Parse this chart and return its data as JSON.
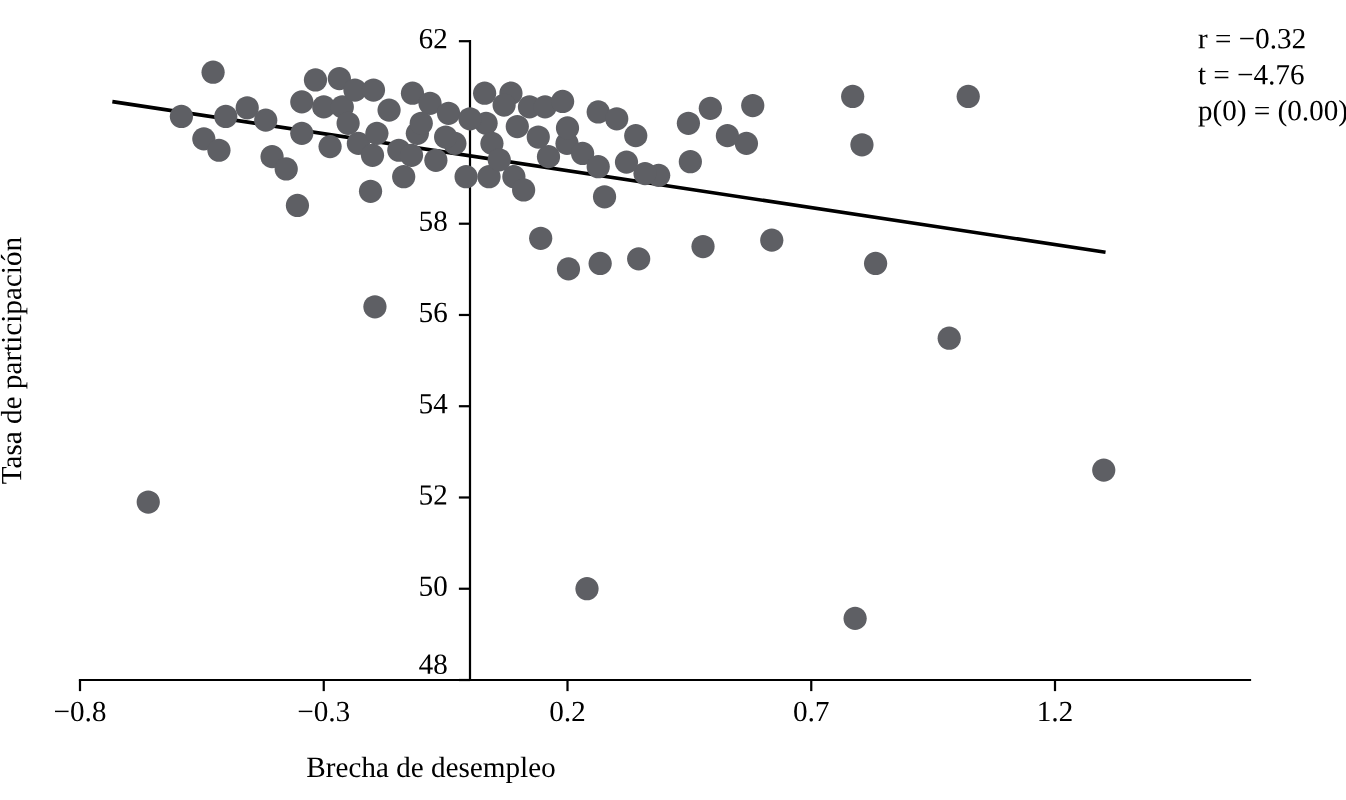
{
  "chart_data": {
    "type": "scatter",
    "xlabel": "Brecha de desempleo",
    "ylabel": "Tasa de participación",
    "xlim": [
      -0.8,
      1.6
    ],
    "xticks": [
      -0.8,
      -0.3,
      0.2,
      0.7,
      1.2
    ],
    "ylim": [
      48,
      62
    ],
    "yticks": [
      48,
      50,
      52,
      54,
      56,
      58,
      62
    ],
    "grid": false,
    "legend": false,
    "marker": "circle",
    "annotations": [
      "r = −0.32",
      "t = −4.76",
      "p(0) = (0.00)"
    ],
    "series": [
      {
        "color": "#5e5f64",
        "x": [
          -0.66,
          0.24,
          0.79,
          1.3,
          0.983,
          1.022,
          0.785,
          0.804,
          0.832,
          0.619,
          0.478,
          0.452,
          0.567,
          0.528,
          0.58,
          0.493,
          0.448,
          0.387,
          0.359,
          -0.527,
          -0.592,
          -0.546,
          -0.515,
          -0.501,
          -0.457,
          -0.419,
          -0.406,
          -0.377,
          -0.354,
          -0.345,
          -0.345,
          -0.317,
          -0.3,
          -0.287,
          -0.268,
          -0.262,
          -0.236,
          -0.229,
          -0.204,
          -0.195,
          -0.198,
          -0.191,
          -0.166,
          -0.146,
          -0.136,
          -0.118,
          -0.108,
          -0.082,
          -0.07,
          -0.044,
          -0.031,
          -0.008,
          0.03,
          0.033,
          0.045,
          0.039,
          0.084,
          0.097,
          0.09,
          0.11,
          0.122,
          0.154,
          0.161,
          0.19,
          0.199,
          0.231,
          0.263,
          0.263,
          0.276,
          0.301,
          0.145,
          0.202,
          0.267,
          0.346,
          0.34,
          0.321,
          -0.25,
          -0.2,
          -0.12,
          -0.05,
          0.0,
          0.06,
          0.14,
          0.2,
          -0.1,
          0.07
        ],
        "values": [
          51.9,
          50.0,
          49.35,
          52.6,
          55.49,
          60.79,
          60.79,
          59.73,
          57.13,
          57.64,
          57.5,
          59.36,
          59.76,
          59.93,
          60.59,
          60.53,
          60.2,
          59.06,
          59.1,
          61.32,
          60.35,
          59.86,
          59.61,
          60.35,
          60.54,
          60.27,
          59.47,
          59.2,
          58.4,
          60.67,
          59.98,
          61.15,
          60.56,
          59.69,
          61.18,
          60.56,
          60.93,
          59.76,
          58.71,
          56.18,
          60.93,
          59.98,
          60.49,
          59.61,
          59.03,
          60.86,
          59.98,
          60.64,
          59.39,
          60.42,
          59.76,
          59.03,
          60.86,
          60.2,
          59.76,
          59.03,
          60.86,
          60.13,
          59.03,
          58.74,
          60.56,
          60.56,
          59.47,
          60.68,
          59.76,
          59.54,
          60.45,
          59.25,
          58.59,
          60.3,
          57.68,
          57.01,
          57.13,
          57.23,
          59.93,
          59.35,
          60.2,
          59.5,
          59.5,
          59.9,
          60.3,
          59.4,
          59.9,
          60.1,
          60.2,
          60.6
        ]
      },
      {
        "type": "line",
        "color": "#000000",
        "marker": "none",
        "x": [
          -0.73,
          1.3
        ],
        "values": [
          60.67,
          57.38
        ]
      }
    ]
  }
}
